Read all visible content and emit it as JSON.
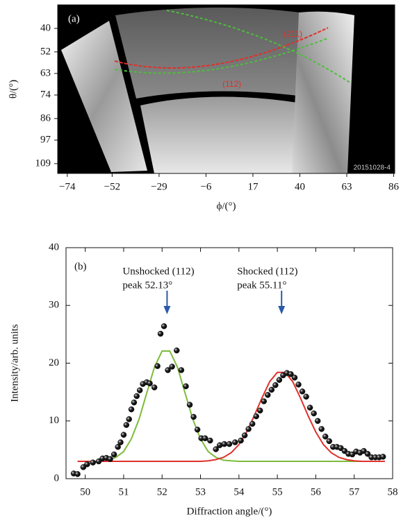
{
  "chart_data": [
    {
      "type": "image",
      "panel_label": "(a)",
      "xlabel": "ϕ/(°)",
      "ylabel": "θ/(°)",
      "xlim": [
        -78.7,
        86.5
      ],
      "ylim": [
        114,
        28
      ],
      "xticks": [
        {
          "value": -74,
          "label": "−74"
        },
        {
          "value": -52,
          "label": "−52"
        },
        {
          "value": -29,
          "label": "−29"
        },
        {
          "value": -6,
          "label": "−6"
        },
        17,
        40,
        63,
        86
      ],
      "yticks": [
        40,
        52,
        63,
        74,
        86,
        97,
        109
      ],
      "annotations": [
        "(211)",
        "(112)",
        "20151028-4"
      ]
    },
    {
      "type": "scatter",
      "panel_label": "(b)",
      "xlabel": "Diffraction angle/(°)",
      "ylabel": "Intensity/arb. units",
      "xlim": [
        49.5,
        58
      ],
      "ylim": [
        0,
        40
      ],
      "xticks": [
        50,
        51,
        52,
        53,
        54,
        55,
        56,
        57,
        58
      ],
      "yticks": [
        0,
        10,
        20,
        30,
        40
      ],
      "points": {
        "color": "#111111",
        "x": [
          49.7,
          49.8,
          49.95,
          50.05,
          50.2,
          50.35,
          50.45,
          50.55,
          50.65,
          50.75,
          50.85,
          50.92,
          51.0,
          51.07,
          51.14,
          51.2,
          51.27,
          51.34,
          51.42,
          51.5,
          51.6,
          51.68,
          51.8,
          51.88,
          51.96,
          52.05,
          52.15,
          52.26,
          52.38,
          52.5,
          52.62,
          52.72,
          52.82,
          52.92,
          53.02,
          53.12,
          53.25,
          53.4,
          53.5,
          53.62,
          53.75,
          53.9,
          54.05,
          54.15,
          54.25,
          54.35,
          54.45,
          54.55,
          54.65,
          54.75,
          54.85,
          54.95,
          55.05,
          55.15,
          55.25,
          55.35,
          55.45,
          55.55,
          55.65,
          55.75,
          55.85,
          55.95,
          56.05,
          56.15,
          56.25,
          56.35,
          56.45,
          56.55,
          56.65,
          56.75,
          56.85,
          56.95,
          57.05,
          57.15,
          57.25,
          57.35,
          57.45,
          57.55,
          57.65,
          57.75
        ],
        "y": [
          0.9,
          0.8,
          2.0,
          2.5,
          2.8,
          3.0,
          3.5,
          3.6,
          3.4,
          4.2,
          5.5,
          6.3,
          7.6,
          9.3,
          10.3,
          12.0,
          13.2,
          14.3,
          15.3,
          16.4,
          16.7,
          16.5,
          15.8,
          19.5,
          25.1,
          26.4,
          18.8,
          19.4,
          22.2,
          18.8,
          16.0,
          12.8,
          10.7,
          8.5,
          7.0,
          7.0,
          6.6,
          5.1,
          5.8,
          6.0,
          6.0,
          6.3,
          6.6,
          7.5,
          8.6,
          9.5,
          10.8,
          11.8,
          13.4,
          14.5,
          15.4,
          16.2,
          17.1,
          17.9,
          18.3,
          18.1,
          17.5,
          16.3,
          15.1,
          14.2,
          12.3,
          11.3,
          10.0,
          8.6,
          7.3,
          6.5,
          5.5,
          5.5,
          5.3,
          4.8,
          4.3,
          4.2,
          4.7,
          4.5,
          4.8,
          4.3,
          3.7,
          3.7,
          3.7,
          3.8
        ]
      },
      "fit_x": [
        49.8,
        50.0,
        50.2,
        50.4,
        50.6,
        50.8,
        51.0,
        51.2,
        51.4,
        51.6,
        51.8,
        52.0,
        52.2,
        52.4,
        52.6,
        52.8,
        53.0,
        53.2,
        53.4,
        53.6,
        53.8,
        54.0,
        54.2,
        54.4,
        54.6,
        54.8,
        55.0,
        55.2,
        55.4,
        55.6,
        55.8,
        56.0,
        56.2,
        56.4,
        56.6,
        56.8,
        57.0,
        57.2,
        57.4,
        57.6,
        57.8
      ],
      "fits": [
        {
          "color": "#7dbb3a",
          "values": [
            null,
            null,
            null,
            null,
            3.2,
            3.7,
            4.7,
            6.9,
            10.3,
            14.8,
            19.3,
            22.1,
            22.1,
            19.3,
            14.8,
            10.3,
            6.9,
            4.7,
            3.7,
            3.2,
            3.1,
            3.0,
            3.0,
            3.0,
            3.0,
            3.0,
            3.0,
            3.0,
            3.0,
            3.0,
            3.0,
            3.0,
            3.0,
            3.0,
            3.0,
            3.0,
            3.0,
            3.0,
            3.0,
            3.0,
            3.0
          ]
        },
        {
          "color": "#e0302a",
          "values": [
            3.0,
            3.0,
            3.0,
            3.0,
            3.0,
            3.0,
            3.0,
            3.0,
            3.0,
            3.0,
            3.0,
            3.0,
            3.0,
            3.0,
            3.0,
            3.0,
            3.0,
            3.1,
            3.3,
            3.7,
            4.5,
            5.9,
            8.1,
            10.9,
            14.0,
            16.8,
            18.4,
            18.4,
            16.8,
            14.0,
            10.9,
            8.1,
            5.9,
            4.5,
            3.7,
            3.3,
            3.1,
            3.0,
            3.0,
            3.0,
            3.0
          ]
        }
      ],
      "annotations": [
        {
          "lines": [
            "Unshocked (112)",
            "peak 52.13°"
          ],
          "x": 52.13
        },
        {
          "lines": [
            "Shocked (112)",
            "peak 55.11°"
          ],
          "x": 55.11
        }
      ],
      "arrow_color": "#2a5aa8"
    }
  ]
}
